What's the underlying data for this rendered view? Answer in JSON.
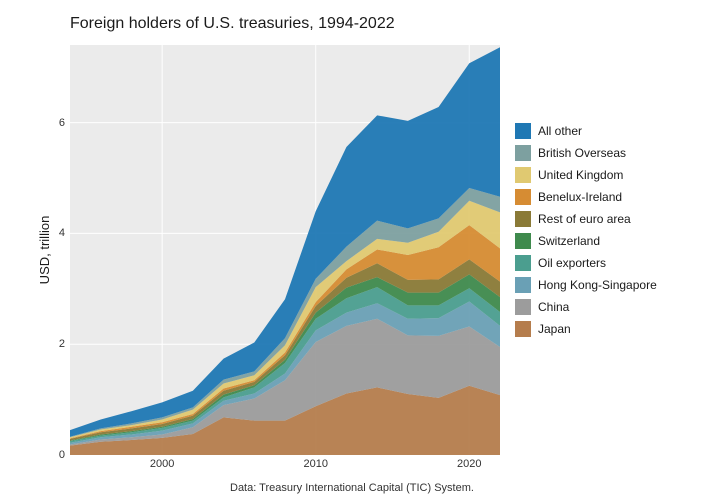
{
  "chart": {
    "type": "area-stacked",
    "title": "Foreign holders of U.S. treasuries, 1994-2022",
    "ylabel": "USD, trillion",
    "caption": "Data: Treasury International Capital (TIC) System.",
    "plot_background": "#ebebeb",
    "grid_color": "#ffffff",
    "x": [
      1994,
      1996,
      1998,
      2000,
      2002,
      2004,
      2006,
      2008,
      2010,
      2012,
      2014,
      2016,
      2018,
      2020,
      2022
    ],
    "xlim": [
      1994,
      2022
    ],
    "ylim": [
      0,
      7.4
    ],
    "xticks": [
      2000,
      2010,
      2020
    ],
    "yticks": [
      0,
      2,
      4,
      6
    ],
    "title_fontsize": 16,
    "axis_label_fontsize": 13,
    "tick_fontsize": 11,
    "series": [
      {
        "name": "Japan",
        "color": "#b57d4d",
        "values": [
          0.17,
          0.24,
          0.27,
          0.31,
          0.38,
          0.68,
          0.62,
          0.62,
          0.88,
          1.11,
          1.22,
          1.1,
          1.03,
          1.25,
          1.08
        ]
      },
      {
        "name": "China",
        "color": "#9c9c9c",
        "values": [
          0.02,
          0.04,
          0.05,
          0.06,
          0.12,
          0.22,
          0.4,
          0.73,
          1.16,
          1.22,
          1.24,
          1.06,
          1.12,
          1.07,
          0.87
        ]
      },
      {
        "name": "Hong Kong-Singapore",
        "color": "#6aa0b5",
        "values": [
          0.03,
          0.04,
          0.05,
          0.07,
          0.07,
          0.08,
          0.09,
          0.12,
          0.21,
          0.24,
          0.28,
          0.3,
          0.32,
          0.45,
          0.38
        ]
      },
      {
        "name": "Oil exporters",
        "color": "#4b9e8f",
        "values": [
          0.03,
          0.03,
          0.04,
          0.05,
          0.05,
          0.06,
          0.11,
          0.19,
          0.21,
          0.26,
          0.29,
          0.24,
          0.23,
          0.24,
          0.25
        ]
      },
      {
        "name": "Switzerland",
        "color": "#3f8a4d",
        "values": [
          0.01,
          0.02,
          0.02,
          0.02,
          0.03,
          0.05,
          0.04,
          0.06,
          0.11,
          0.19,
          0.18,
          0.23,
          0.23,
          0.25,
          0.27
        ]
      },
      {
        "name": "Rest of euro area",
        "color": "#8a7a37",
        "values": [
          0.03,
          0.04,
          0.05,
          0.05,
          0.06,
          0.07,
          0.06,
          0.08,
          0.12,
          0.18,
          0.25,
          0.23,
          0.24,
          0.27,
          0.28
        ]
      },
      {
        "name": "Benelux-Ireland",
        "color": "#d68c33",
        "values": [
          0.01,
          0.02,
          0.03,
          0.03,
          0.03,
          0.04,
          0.03,
          0.05,
          0.07,
          0.15,
          0.25,
          0.45,
          0.58,
          0.62,
          0.6
        ]
      },
      {
        "name": "United Kingdom",
        "color": "#e0c971",
        "values": [
          0.02,
          0.03,
          0.03,
          0.05,
          0.08,
          0.09,
          0.09,
          0.13,
          0.27,
          0.15,
          0.19,
          0.22,
          0.28,
          0.44,
          0.65
        ]
      },
      {
        "name": "British Overseas",
        "color": "#7da0a0",
        "values": [
          0.01,
          0.02,
          0.03,
          0.04,
          0.04,
          0.07,
          0.07,
          0.13,
          0.15,
          0.26,
          0.33,
          0.26,
          0.24,
          0.23,
          0.28
        ]
      },
      {
        "name": "All other",
        "color": "#1f78b4",
        "values": [
          0.12,
          0.16,
          0.22,
          0.27,
          0.3,
          0.38,
          0.52,
          0.7,
          1.22,
          1.8,
          1.9,
          1.94,
          2.01,
          2.25,
          2.7
        ]
      }
    ],
    "legend_order": [
      "All other",
      "British Overseas",
      "United Kingdom",
      "Benelux-Ireland",
      "Rest of euro area",
      "Switzerland",
      "Oil exporters",
      "Hong Kong-Singapore",
      "China",
      "Japan"
    ]
  }
}
